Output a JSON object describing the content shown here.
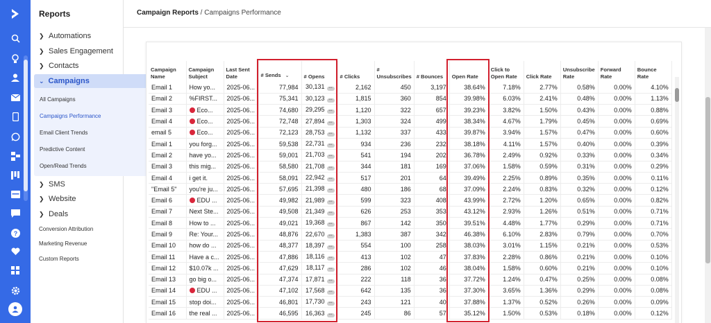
{
  "nav": {
    "title": "Reports",
    "groups": [
      {
        "label": "Automations"
      },
      {
        "label": "Sales Engagement"
      },
      {
        "label": "Contacts"
      }
    ],
    "campaigns_label": "Campaigns",
    "campaign_items": [
      "All Campaigns",
      "Campaigns Performance",
      "Email Client Trends",
      "Predictive Content",
      "Open/Read Trends"
    ],
    "selected_item": "Campaigns Performance",
    "lower_groups": [
      {
        "label": "SMS"
      },
      {
        "label": "Website"
      },
      {
        "label": "Deals"
      }
    ],
    "plain_items": [
      "Conversion Attribution",
      "Marketing Revenue",
      "Custom Reports"
    ]
  },
  "breadcrumb": {
    "parent": "Campaign Reports",
    "separator": " / ",
    "current": "Campaigns Performance"
  },
  "table": {
    "headers": [
      "Campaign Name",
      "Campaign Subject",
      "Last Sent Date",
      "# Sends",
      "# Opens",
      "# Clicks",
      "# Unsubscribes",
      "# Bounces",
      "Open Rate",
      "Click to Open Rate",
      "Click Rate",
      "Unsubscribe Rate",
      "Forward Rate",
      "Bounce Rate"
    ],
    "rows": [
      {
        "name": "Email 1",
        "subject": "How yo...",
        "dot": false,
        "date": "2025-06...",
        "sends": "77,984",
        "opens": "30,131",
        "clicks": "2,162",
        "unsubs": "450",
        "bounces": "3,197",
        "open_rate": "38.64%",
        "cto": "7.18%",
        "click_rate": "2.77%",
        "unsub_rate": "0.58%",
        "fwd": "0.00%",
        "bounce_rate": "4.10%"
      },
      {
        "name": "Email 2",
        "subject": "%FIRST...",
        "dot": false,
        "date": "2025-06...",
        "sends": "75,341",
        "opens": "30,123",
        "clicks": "1,815",
        "unsubs": "360",
        "bounces": "854",
        "open_rate": "39.98%",
        "cto": "6.03%",
        "click_rate": "2.41%",
        "unsub_rate": "0.48%",
        "fwd": "0.00%",
        "bounce_rate": "1.13%"
      },
      {
        "name": "Email 3",
        "subject": "Eco...",
        "dot": true,
        "date": "2025-06...",
        "sends": "74,680",
        "opens": "29,295",
        "clicks": "1,120",
        "unsubs": "322",
        "bounces": "657",
        "open_rate": "39.23%",
        "cto": "3.82%",
        "click_rate": "1.50%",
        "unsub_rate": "0.43%",
        "fwd": "0.00%",
        "bounce_rate": "0.88%"
      },
      {
        "name": "Email 4",
        "subject": "Eco...",
        "dot": true,
        "date": "2025-06...",
        "sends": "72,748",
        "opens": "27,894",
        "clicks": "1,303",
        "unsubs": "324",
        "bounces": "499",
        "open_rate": "38.34%",
        "cto": "4.67%",
        "click_rate": "1.79%",
        "unsub_rate": "0.45%",
        "fwd": "0.00%",
        "bounce_rate": "0.69%"
      },
      {
        "name": "email 5",
        "subject": "Eco...",
        "dot": true,
        "date": "2025-06...",
        "sends": "72,123",
        "opens": "28,753",
        "clicks": "1,132",
        "unsubs": "337",
        "bounces": "433",
        "open_rate": "39.87%",
        "cto": "3.94%",
        "click_rate": "1.57%",
        "unsub_rate": "0.47%",
        "fwd": "0.00%",
        "bounce_rate": "0.60%"
      },
      {
        "name": "Email 1",
        "subject": "you forg...",
        "dot": false,
        "date": "2025-06...",
        "sends": "59,538",
        "opens": "22,731",
        "clicks": "934",
        "unsubs": "236",
        "bounces": "232",
        "open_rate": "38.18%",
        "cto": "4.11%",
        "click_rate": "1.57%",
        "unsub_rate": "0.40%",
        "fwd": "0.00%",
        "bounce_rate": "0.39%"
      },
      {
        "name": "Email 2",
        "subject": "have yo...",
        "dot": false,
        "date": "2025-06...",
        "sends": "59,001",
        "opens": "21,703",
        "clicks": "541",
        "unsubs": "194",
        "bounces": "202",
        "open_rate": "36.78%",
        "cto": "2.49%",
        "click_rate": "0.92%",
        "unsub_rate": "0.33%",
        "fwd": "0.00%",
        "bounce_rate": "0.34%"
      },
      {
        "name": "Email 3",
        "subject": "this mig...",
        "dot": false,
        "date": "2025-06...",
        "sends": "58,580",
        "opens": "21,708",
        "clicks": "344",
        "unsubs": "181",
        "bounces": "169",
        "open_rate": "37.06%",
        "cto": "1.58%",
        "click_rate": "0.59%",
        "unsub_rate": "0.31%",
        "fwd": "0.00%",
        "bounce_rate": "0.29%"
      },
      {
        "name": "Email 4",
        "subject": "i get it.",
        "dot": false,
        "date": "2025-06...",
        "sends": "58,091",
        "opens": "22,942",
        "clicks": "517",
        "unsubs": "201",
        "bounces": "64",
        "open_rate": "39.49%",
        "cto": "2.25%",
        "click_rate": "0.89%",
        "unsub_rate": "0.35%",
        "fwd": "0.00%",
        "bounce_rate": "0.11%"
      },
      {
        "name": "\"Email 5\"",
        "subject": "you're ju...",
        "dot": false,
        "date": "2025-06...",
        "sends": "57,695",
        "opens": "21,398",
        "clicks": "480",
        "unsubs": "186",
        "bounces": "68",
        "open_rate": "37.09%",
        "cto": "2.24%",
        "click_rate": "0.83%",
        "unsub_rate": "0.32%",
        "fwd": "0.00%",
        "bounce_rate": "0.12%"
      },
      {
        "name": "Email 6",
        "subject": "EDU ...",
        "dot": true,
        "date": "2025-06...",
        "sends": "49,982",
        "opens": "21,989",
        "clicks": "599",
        "unsubs": "323",
        "bounces": "408",
        "open_rate": "43.99%",
        "cto": "2.72%",
        "click_rate": "1.20%",
        "unsub_rate": "0.65%",
        "fwd": "0.00%",
        "bounce_rate": "0.82%"
      },
      {
        "name": "Email 7",
        "subject": "Next Ste...",
        "dot": false,
        "date": "2025-06...",
        "sends": "49,508",
        "opens": "21,349",
        "clicks": "626",
        "unsubs": "253",
        "bounces": "353",
        "open_rate": "43.12%",
        "cto": "2.93%",
        "click_rate": "1.26%",
        "unsub_rate": "0.51%",
        "fwd": "0.00%",
        "bounce_rate": "0.71%"
      },
      {
        "name": "Email 8",
        "subject": "How to ...",
        "dot": false,
        "date": "2025-06...",
        "sends": "49,021",
        "opens": "19,368",
        "clicks": "867",
        "unsubs": "142",
        "bounces": "350",
        "open_rate": "39.51%",
        "cto": "4.48%",
        "click_rate": "1.77%",
        "unsub_rate": "0.29%",
        "fwd": "0.00%",
        "bounce_rate": "0.71%"
      },
      {
        "name": "Email 9",
        "subject": "Re: Your...",
        "dot": false,
        "date": "2025-06...",
        "sends": "48,876",
        "opens": "22,670",
        "clicks": "1,383",
        "unsubs": "387",
        "bounces": "342",
        "open_rate": "46.38%",
        "cto": "6.10%",
        "click_rate": "2.83%",
        "unsub_rate": "0.79%",
        "fwd": "0.00%",
        "bounce_rate": "0.70%"
      },
      {
        "name": "Email 10",
        "subject": "how do ...",
        "dot": false,
        "date": "2025-06...",
        "sends": "48,377",
        "opens": "18,397",
        "clicks": "554",
        "unsubs": "100",
        "bounces": "258",
        "open_rate": "38.03%",
        "cto": "3.01%",
        "click_rate": "1.15%",
        "unsub_rate": "0.21%",
        "fwd": "0.00%",
        "bounce_rate": "0.53%"
      },
      {
        "name": "Email 11",
        "subject": "Have a c...",
        "dot": false,
        "date": "2025-06...",
        "sends": "47,886",
        "opens": "18,116",
        "clicks": "413",
        "unsubs": "102",
        "bounces": "47",
        "open_rate": "37.83%",
        "cto": "2.28%",
        "click_rate": "0.86%",
        "unsub_rate": "0.21%",
        "fwd": "0.00%",
        "bounce_rate": "0.10%"
      },
      {
        "name": "Email 12",
        "subject": "$10.07k ...",
        "dot": false,
        "date": "2025-06...",
        "sends": "47,629",
        "opens": "18,117",
        "clicks": "286",
        "unsubs": "102",
        "bounces": "46",
        "open_rate": "38.04%",
        "cto": "1.58%",
        "click_rate": "0.60%",
        "unsub_rate": "0.21%",
        "fwd": "0.00%",
        "bounce_rate": "0.10%"
      },
      {
        "name": "Email 13",
        "subject": "go big o...",
        "dot": false,
        "date": "2025-06...",
        "sends": "47,374",
        "opens": "17,871",
        "clicks": "222",
        "unsubs": "118",
        "bounces": "36",
        "open_rate": "37.72%",
        "cto": "1.24%",
        "click_rate": "0.47%",
        "unsub_rate": "0.25%",
        "fwd": "0.00%",
        "bounce_rate": "0.08%"
      },
      {
        "name": "Email 14",
        "subject": "EDU ...",
        "dot": true,
        "date": "2025-06...",
        "sends": "47,102",
        "opens": "17,568",
        "clicks": "642",
        "unsubs": "135",
        "bounces": "36",
        "open_rate": "37.30%",
        "cto": "3.65%",
        "click_rate": "1.36%",
        "unsub_rate": "0.29%",
        "fwd": "0.00%",
        "bounce_rate": "0.08%"
      },
      {
        "name": "Email 15",
        "subject": "stop doi...",
        "dot": false,
        "date": "2025-06...",
        "sends": "46,801",
        "opens": "17,730",
        "clicks": "243",
        "unsubs": "121",
        "bounces": "40",
        "open_rate": "37.88%",
        "cto": "1.37%",
        "click_rate": "0.52%",
        "unsub_rate": "0.26%",
        "fwd": "0.00%",
        "bounce_rate": "0.09%"
      },
      {
        "name": "Email 16",
        "subject": "the real ...",
        "dot": false,
        "date": "2025-06...",
        "sends": "46,595",
        "opens": "16,363",
        "clicks": "245",
        "unsubs": "86",
        "bounces": "57",
        "open_rate": "35.12%",
        "cto": "1.50%",
        "click_rate": "0.53%",
        "unsub_rate": "0.18%",
        "fwd": "0.00%",
        "bounce_rate": "0.12%"
      }
    ]
  },
  "colors": {
    "rail": "#356ae6",
    "highlight": "#d2202e",
    "accent": "#2a55c9",
    "dot": "#d9263b"
  },
  "rail_icons": [
    "logo-icon",
    "search-icon",
    "lightbulb-icon",
    "contacts-icon",
    "email-icon",
    "mobile-icon",
    "whatsapp-icon",
    "automation-icon",
    "pipeline-icon",
    "reports-icon",
    "chat-icon",
    "help-icon",
    "heart-icon",
    "apps-icon",
    "settings-icon",
    "user-icon"
  ]
}
